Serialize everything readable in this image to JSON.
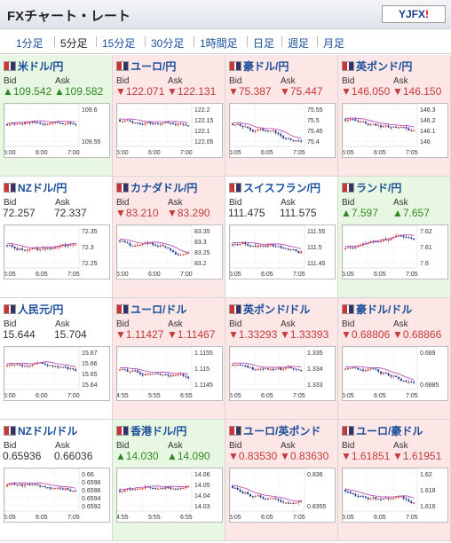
{
  "header": {
    "title": "FXチャート・レート",
    "logo": "YJFX!"
  },
  "tabs": [
    "1分足",
    "5分足",
    "15分足",
    "30分足",
    "1時間足",
    "日足",
    "週足",
    "月足"
  ],
  "active_tab": 1,
  "labels": {
    "bid": "Bid",
    "ask": "Ask"
  },
  "pairs": [
    {
      "name": "米ドル/円",
      "bid": "▲109.542",
      "ask": "▲109.582",
      "dir": "up",
      "ticks": [
        "109.6",
        "109.55"
      ],
      "xt": [
        "5:00",
        "6:00",
        "7:00"
      ]
    },
    {
      "name": "ユーロ/円",
      "bid": "▼122.071",
      "ask": "▼122.131",
      "dir": "down",
      "ticks": [
        "122.2",
        "122.15",
        "122.1",
        "122.05"
      ],
      "xt": [
        "5:00",
        "6:00",
        "7:00"
      ]
    },
    {
      "name": "豪ドル/円",
      "bid": "▼75.387",
      "ask": "▼75.447",
      "dir": "down",
      "ticks": [
        "75.55",
        "75.5",
        "75.45",
        "75.4"
      ],
      "xt": [
        "5:05",
        "6:05",
        "7:05"
      ]
    },
    {
      "name": "英ポンド/円",
      "bid": "▼146.050",
      "ask": "▼146.150",
      "dir": "down",
      "ticks": [
        "146.3",
        "146.2",
        "146.1",
        "146"
      ],
      "xt": [
        "5:05",
        "6:05",
        "7:05"
      ]
    },
    {
      "name": "NZドル/円",
      "bid": "72.257",
      "ask": "72.337",
      "dir": "flat",
      "ticks": [
        "72.35",
        "72.3",
        "72.25"
      ],
      "xt": [
        "5:05",
        "6:05",
        "7:05"
      ]
    },
    {
      "name": "カナダドル/円",
      "bid": "▼83.210",
      "ask": "▼83.290",
      "dir": "down",
      "ticks": [
        "83.35",
        "83.3",
        "83.25",
        "83.2"
      ],
      "xt": [
        "5:00",
        "6:00",
        "7:00"
      ]
    },
    {
      "name": "スイスフラン/円",
      "bid": "111.475",
      "ask": "111.575",
      "dir": "flat",
      "ticks": [
        "111.55",
        "111.5",
        "111.45"
      ],
      "xt": [
        "5:05",
        "6:05",
        "7:05"
      ]
    },
    {
      "name": "ランド/円",
      "bid": "▲7.597",
      "ask": "▲7.657",
      "dir": "up",
      "ticks": [
        "7.62",
        "7.61",
        "7.6"
      ],
      "xt": [
        "5:05",
        "6:05",
        "7:05"
      ]
    },
    {
      "name": "人民元/円",
      "bid": "15.644",
      "ask": "15.704",
      "dir": "flat",
      "ticks": [
        "15.67",
        "15.66",
        "15.65",
        "15.64"
      ],
      "xt": [
        "5:00",
        "6:00",
        "7:00"
      ]
    },
    {
      "name": "ユーロ/ドル",
      "bid": "▼1.11427",
      "ask": "▼1.11467",
      "dir": "down",
      "ticks": [
        "1.1155",
        "1.115",
        "1.1145"
      ],
      "xt": [
        "4:55",
        "5:55",
        "6:55"
      ]
    },
    {
      "name": "英ポンド/ドル",
      "bid": "▼1.33293",
      "ask": "▼1.33393",
      "dir": "down",
      "ticks": [
        "1.335",
        "1.334",
        "1.333"
      ],
      "xt": [
        "5:05",
        "6:05",
        "7:05"
      ]
    },
    {
      "name": "豪ドル/ドル",
      "bid": "▼0.68806",
      "ask": "▼0.68866",
      "dir": "down",
      "ticks": [
        "0.689",
        "0.6885"
      ],
      "xt": [
        "5:05",
        "6:05",
        "7:05"
      ]
    },
    {
      "name": "NZドル/ドル",
      "bid": "0.65936",
      "ask": "0.66036",
      "dir": "flat",
      "ticks": [
        "0.66",
        "0.6598",
        "0.6596",
        "0.6594",
        "0.6592"
      ],
      "xt": [
        "5:05",
        "6:05",
        "7:05"
      ]
    },
    {
      "name": "香港ドル/円",
      "bid": "▲14.030",
      "ask": "▲14.090",
      "dir": "up",
      "ticks": [
        "14.06",
        "14.05",
        "14.04",
        "14.03"
      ],
      "xt": [
        "4:55",
        "5:55",
        "6:55"
      ]
    },
    {
      "name": "ユーロ/英ポンド",
      "bid": "▼0.83530",
      "ask": "▼0.83630",
      "dir": "down",
      "ticks": [
        "0.836",
        "0.8355"
      ],
      "xt": [
        "5:05",
        "6:05",
        "7:05"
      ]
    },
    {
      "name": "ユーロ/豪ドル",
      "bid": "▼1.61851",
      "ask": "▼1.61951",
      "dir": "down",
      "ticks": [
        "1.62",
        "1.618",
        "1.616"
      ],
      "xt": [
        "5:05",
        "6:05",
        "7:05"
      ]
    }
  ]
}
